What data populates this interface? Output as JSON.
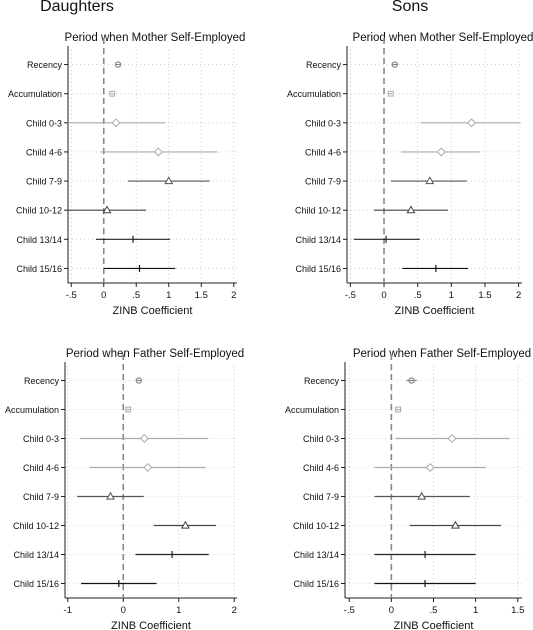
{
  "column_titles": [
    "Daughters",
    "Sons"
  ],
  "chart_data": [
    {
      "type": "scatter",
      "subtype": "coefficient-plot",
      "title": "Period when Mother Self-Employed",
      "column": "Daughters",
      "xlabel": "ZINB Coefficient",
      "xlim": [
        -0.55,
        2.05
      ],
      "xticks": [
        -0.5,
        0,
        0.5,
        1,
        1.5,
        2
      ],
      "xtick_labels": [
        "-.5",
        "0",
        ".5",
        "1",
        "1.5",
        "2"
      ],
      "reference_line": 0,
      "categories": [
        "Recency",
        "Accumulation",
        "Child 0-3",
        "Child 4-6",
        "Child 7-9",
        "Child 10-12",
        "Child 13/14",
        "Child 15/16"
      ],
      "estimates": [
        0.22,
        0.13,
        0.19,
        0.84,
        1.0,
        0.05,
        0.45,
        0.55
      ],
      "ci_low": [
        0.19,
        0.11,
        -0.55,
        -0.05,
        0.37,
        -0.55,
        -0.12,
        0.0
      ],
      "ci_high": [
        0.26,
        0.15,
        0.95,
        1.75,
        1.63,
        0.65,
        1.02,
        1.1
      ],
      "markers": [
        "circle",
        "square",
        "diamond",
        "diamond",
        "triangle",
        "triangle",
        "plus",
        "plus"
      ],
      "colors": [
        "#888888",
        "#aaaaaa",
        "#aaaaaa",
        "#aaaaaa",
        "#555555",
        "#444444",
        "#222222",
        "#111111"
      ]
    },
    {
      "type": "scatter",
      "subtype": "coefficient-plot",
      "title": "Period when Mother Self-Employed",
      "column": "Sons",
      "xlabel": "ZINB Coefficient",
      "xlim": [
        -0.55,
        2.05
      ],
      "xticks": [
        -0.5,
        0,
        0.5,
        1,
        1.5,
        2
      ],
      "xtick_labels": [
        "-.5",
        "0",
        ".5",
        "1",
        "1.5",
        "2"
      ],
      "reference_line": 0,
      "categories": [
        "Recency",
        "Accumulation",
        "Child 0-3",
        "Child 4-6",
        "Child 7-9",
        "Child 10-12",
        "Child 13/14",
        "Child 15/16"
      ],
      "estimates": [
        0.16,
        0.1,
        1.3,
        0.85,
        0.68,
        0.4,
        0.03,
        0.77
      ],
      "ci_low": [
        0.12,
        0.08,
        0.55,
        0.25,
        0.1,
        -0.15,
        -0.45,
        0.27
      ],
      "ci_high": [
        0.2,
        0.12,
        2.03,
        1.42,
        1.23,
        0.95,
        0.53,
        1.25
      ],
      "markers": [
        "circle",
        "square",
        "diamond",
        "diamond",
        "triangle",
        "triangle",
        "plus",
        "plus"
      ],
      "colors": [
        "#888888",
        "#aaaaaa",
        "#aaaaaa",
        "#aaaaaa",
        "#555555",
        "#444444",
        "#222222",
        "#111111"
      ]
    },
    {
      "type": "scatter",
      "subtype": "coefficient-plot",
      "title": "Period when Father Self-Employed",
      "column": "Daughters",
      "xlabel": "ZINB Coefficient",
      "xlim": [
        -1.05,
        2.05
      ],
      "xticks": [
        -1,
        0,
        1,
        2
      ],
      "xtick_labels": [
        "-1",
        "0",
        "1",
        "2"
      ],
      "reference_line": 0,
      "categories": [
        "Recency",
        "Accumulation",
        "Child 0-3",
        "Child 4-6",
        "Child 7-9",
        "Child 10-12",
        "Child 13/14",
        "Child 15/16"
      ],
      "estimates": [
        0.28,
        0.09,
        0.38,
        0.44,
        -0.23,
        1.12,
        0.88,
        -0.08
      ],
      "ci_low": [
        0.23,
        0.06,
        -0.78,
        -0.6,
        -0.83,
        0.55,
        0.22,
        -0.76
      ],
      "ci_high": [
        0.33,
        0.12,
        1.53,
        1.48,
        0.37,
        1.67,
        1.54,
        0.6
      ],
      "markers": [
        "circle",
        "square",
        "diamond",
        "diamond",
        "triangle",
        "triangle",
        "plus",
        "plus"
      ],
      "colors": [
        "#888888",
        "#aaaaaa",
        "#aaaaaa",
        "#aaaaaa",
        "#555555",
        "#444444",
        "#222222",
        "#111111"
      ]
    },
    {
      "type": "scatter",
      "subtype": "coefficient-plot",
      "title": "Period when Father Self-Employed",
      "column": "Sons",
      "xlabel": "ZINB Coefficient",
      "xlim": [
        -0.55,
        1.55
      ],
      "xticks": [
        -0.5,
        0,
        0.5,
        1,
        1.5
      ],
      "xtick_labels": [
        "-.5",
        "0",
        ".5",
        "1",
        "1.5"
      ],
      "reference_line": 0,
      "categories": [
        "Recency",
        "Accumulation",
        "Child 0-3",
        "Child 4-6",
        "Child 7-9",
        "Child 10-12",
        "Child 13/14",
        "Child 15/16"
      ],
      "estimates": [
        0.24,
        0.08,
        0.72,
        0.46,
        0.36,
        0.76,
        0.4,
        0.4
      ],
      "ci_low": [
        0.18,
        0.06,
        0.05,
        -0.2,
        -0.2,
        0.22,
        -0.2,
        -0.2
      ],
      "ci_high": [
        0.3,
        0.1,
        1.4,
        1.12,
        0.93,
        1.3,
        1.0,
        1.0
      ],
      "markers": [
        "circle",
        "square",
        "diamond",
        "diamond",
        "triangle",
        "triangle",
        "plus",
        "plus"
      ],
      "colors": [
        "#888888",
        "#aaaaaa",
        "#aaaaaa",
        "#aaaaaa",
        "#555555",
        "#444444",
        "#222222",
        "#111111"
      ]
    }
  ]
}
